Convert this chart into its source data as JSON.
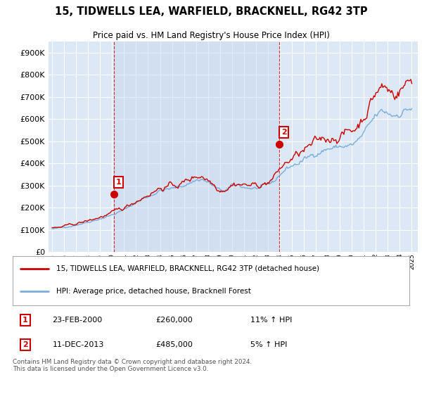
{
  "title": "15, TIDWELLS LEA, WARFIELD, BRACKNELL, RG42 3TP",
  "subtitle": "Price paid vs. HM Land Registry's House Price Index (HPI)",
  "legend_label_red": "15, TIDWELLS LEA, WARFIELD, BRACKNELL, RG42 3TP (detached house)",
  "legend_label_blue": "HPI: Average price, detached house, Bracknell Forest",
  "annotation1_label": "1",
  "annotation1_date": "23-FEB-2000",
  "annotation1_price": "£260,000",
  "annotation1_hpi": "11% ↑ HPI",
  "annotation2_label": "2",
  "annotation2_date": "11-DEC-2013",
  "annotation2_price": "£485,000",
  "annotation2_hpi": "5% ↑ HPI",
  "footnote": "Contains HM Land Registry data © Crown copyright and database right 2024.\nThis data is licensed under the Open Government Licence v3.0.",
  "red_color": "#cc0000",
  "blue_color": "#7aaddb",
  "vline_color": "#cc0000",
  "annotation_box_color": "#cc0000",
  "background_plot": "#dce8f5",
  "grid_color": "#ffffff",
  "ylim": [
    0,
    950000
  ],
  "yticks": [
    0,
    100000,
    200000,
    300000,
    400000,
    500000,
    600000,
    700000,
    800000,
    900000
  ],
  "sale1_x": 2000.14,
  "sale1_y": 260000,
  "sale2_x": 2013.93,
  "sale2_y": 485000,
  "xlim_left": 1994.7,
  "xlim_right": 2025.5
}
